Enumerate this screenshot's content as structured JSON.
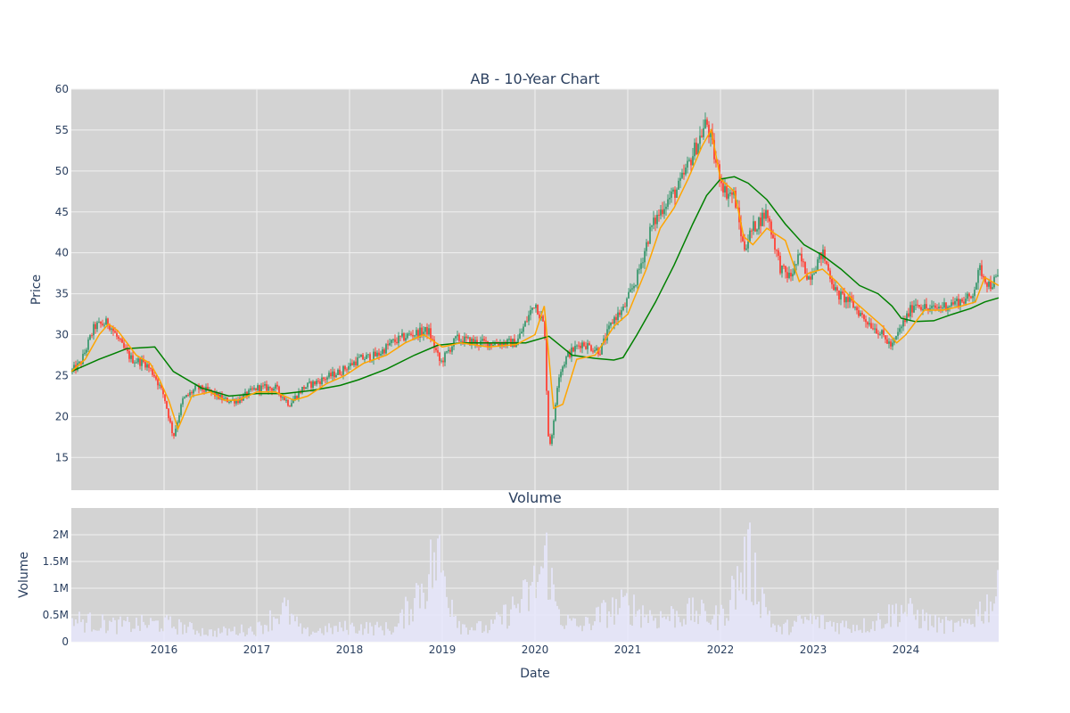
{
  "colors": {
    "plot_bg": "#d3d3d3",
    "grid": "#f0f0f0",
    "text": "#2a3f5f",
    "increasing": "#3d9970",
    "decreasing": "#ff4136",
    "ma_short": "#ffa500",
    "ma_long": "#008000",
    "volume": "#e6e6fa"
  },
  "chart_data": [
    {
      "type": "candlestick",
      "title": "AB - 10-Year Chart",
      "xlabel": "",
      "ylabel": "Price",
      "ylim": [
        11,
        60
      ],
      "yticks": [
        15,
        20,
        25,
        30,
        35,
        40,
        45,
        50,
        55,
        60
      ],
      "x_range": [
        2015.0,
        2025.0
      ],
      "grid": true,
      "series": [
        {
          "kind": "price",
          "x": [
            2015.0,
            2015.1,
            2015.25,
            2015.4,
            2015.55,
            2015.65,
            2015.8,
            2015.9,
            2016.0,
            2016.1,
            2016.2,
            2016.35,
            2016.5,
            2016.65,
            2016.8,
            2017.0,
            2017.2,
            2017.35,
            2017.5,
            2017.7,
            2017.9,
            2018.1,
            2018.3,
            2018.45,
            2018.65,
            2018.85,
            2018.98,
            2019.15,
            2019.4,
            2019.6,
            2019.8,
            2020.0,
            2020.1,
            2020.15,
            2020.2,
            2020.25,
            2020.35,
            2020.5,
            2020.7,
            2020.85,
            2020.95,
            2021.1,
            2021.25,
            2021.4,
            2021.55,
            2021.7,
            2021.85,
            2021.95,
            2022.05,
            2022.15,
            2022.25,
            2022.35,
            2022.5,
            2022.65,
            2022.75,
            2022.85,
            2022.95,
            2023.1,
            2023.25,
            2023.4,
            2023.55,
            2023.7,
            2023.85,
            2023.95,
            2024.1,
            2024.25,
            2024.4,
            2024.55,
            2024.7,
            2024.8,
            2024.9,
            2025.0
          ],
          "values": [
            25.5,
            26.5,
            31,
            31.5,
            28.5,
            27,
            26.5,
            25,
            22.5,
            17.5,
            22,
            23.5,
            23,
            22,
            22,
            23.5,
            23.5,
            21.5,
            23.5,
            24.5,
            25.5,
            27,
            27.5,
            29,
            30,
            30.5,
            26.5,
            29.5,
            29,
            29,
            29,
            34,
            31,
            16,
            19,
            25,
            27.5,
            29,
            28,
            32,
            33,
            37,
            43,
            46,
            48,
            52,
            56,
            51,
            47.5,
            47,
            40.5,
            43,
            45,
            38,
            37,
            39.5,
            37,
            40,
            35,
            34,
            32,
            30.5,
            28.5,
            31,
            34,
            33,
            33.5,
            34,
            34.5,
            38,
            36,
            37
          ]
        },
        {
          "name": "",
          "kind": "ma_short",
          "x": [
            2015.0,
            2015.15,
            2015.3,
            2015.4,
            2015.5,
            2015.7,
            2015.85,
            2015.95,
            2016.05,
            2016.15,
            2016.3,
            2016.5,
            2016.65,
            2016.8,
            2017.0,
            2017.2,
            2017.4,
            2017.55,
            2017.75,
            2017.95,
            2018.15,
            2018.4,
            2018.6,
            2018.8,
            2019.0,
            2019.2,
            2019.5,
            2019.8,
            2020.0,
            2020.1,
            2020.2,
            2020.3,
            2020.45,
            2020.65,
            2020.85,
            2021.0,
            2021.2,
            2021.35,
            2021.5,
            2021.65,
            2021.8,
            2021.9,
            2022.0,
            2022.15,
            2022.25,
            2022.35,
            2022.5,
            2022.7,
            2022.85,
            2022.95,
            2023.1,
            2023.25,
            2023.45,
            2023.6,
            2023.75,
            2023.9,
            2024.0,
            2024.2,
            2024.4,
            2024.6,
            2024.75,
            2024.85,
            2025.0
          ],
          "values": [
            25.5,
            27,
            30,
            31.3,
            30.5,
            27.5,
            26.5,
            24.5,
            22,
            18.5,
            22.5,
            23,
            22,
            22,
            23,
            23,
            22,
            22.5,
            24,
            25,
            26.5,
            27.5,
            29,
            30,
            28.5,
            29,
            28.5,
            28.8,
            30,
            33.5,
            21,
            21.5,
            27,
            27.5,
            31,
            32.5,
            38,
            43,
            45.5,
            49,
            53,
            55,
            49,
            47.5,
            42,
            41,
            43,
            41.5,
            36.5,
            37.5,
            38,
            36.5,
            34,
            32.5,
            31,
            29,
            30,
            33,
            33,
            33.5,
            34,
            37,
            36
          ]
        },
        {
          "name": "",
          "kind": "ma_long",
          "x": [
            2015.0,
            2015.3,
            2015.6,
            2015.9,
            2016.1,
            2016.4,
            2016.7,
            2017.0,
            2017.3,
            2017.6,
            2017.9,
            2018.1,
            2018.4,
            2018.7,
            2018.95,
            2019.2,
            2019.6,
            2019.9,
            2020.15,
            2020.4,
            2020.65,
            2020.85,
            2020.95,
            2021.1,
            2021.3,
            2021.5,
            2021.7,
            2021.85,
            2022.0,
            2022.15,
            2022.3,
            2022.5,
            2022.7,
            2022.9,
            2023.1,
            2023.3,
            2023.5,
            2023.7,
            2023.85,
            2023.95,
            2024.1,
            2024.3,
            2024.5,
            2024.7,
            2024.85,
            2025.0
          ],
          "values": [
            25.5,
            27,
            28.3,
            28.5,
            25.5,
            23.5,
            22.5,
            22.8,
            22.8,
            23.2,
            23.8,
            24.5,
            25.8,
            27.5,
            28.7,
            29,
            29,
            29,
            29.8,
            27.5,
            27.1,
            26.9,
            27.2,
            30,
            34,
            38.5,
            43.5,
            47,
            49,
            49.3,
            48.5,
            46.5,
            43.5,
            41,
            39.7,
            38,
            36,
            35,
            33.5,
            32,
            31.6,
            31.7,
            32.5,
            33.2,
            34,
            34.5
          ]
        }
      ]
    },
    {
      "type": "bar",
      "title": "Volume",
      "xlabel": "Date",
      "ylabel": "Volume",
      "ylim": [
        0,
        2500000
      ],
      "yticks": [
        0,
        500000,
        1000000,
        1500000,
        2000000
      ],
      "ytick_labels": [
        "0",
        "0.5M",
        "1M",
        "1.5M",
        "2M"
      ],
      "x_range": [
        2015.0,
        2025.0
      ],
      "xticks": [
        2016,
        2017,
        2018,
        2019,
        2020,
        2021,
        2022,
        2023,
        2024
      ],
      "xtick_labels": [
        "2016",
        "2017",
        "2018",
        "2019",
        "2020",
        "2021",
        "2022",
        "2023",
        "2024"
      ],
      "grid": true,
      "series": [
        {
          "x": [
            2015.0,
            2015.5,
            2016.0,
            2016.5,
            2017.0,
            2017.3,
            2017.5,
            2018.0,
            2018.5,
            2018.95,
            2019.2,
            2019.5,
            2019.95,
            2020.15,
            2020.2,
            2020.3,
            2020.5,
            2020.75,
            2021.0,
            2021.3,
            2021.7,
            2022.0,
            2022.3,
            2022.6,
            2022.95,
            2023.3,
            2023.6,
            2023.95,
            2024.3,
            2024.6,
            2025.0
          ],
          "values": [
            600000,
            450000,
            500000,
            250000,
            350000,
            900000,
            250000,
            400000,
            350000,
            2300000,
            450000,
            350000,
            1300000,
            2350000,
            1200000,
            600000,
            400000,
            800000,
            1000000,
            650000,
            800000,
            650000,
            2250000,
            300000,
            600000,
            450000,
            450000,
            900000,
            500000,
            400000,
            1300000
          ]
        }
      ]
    }
  ]
}
